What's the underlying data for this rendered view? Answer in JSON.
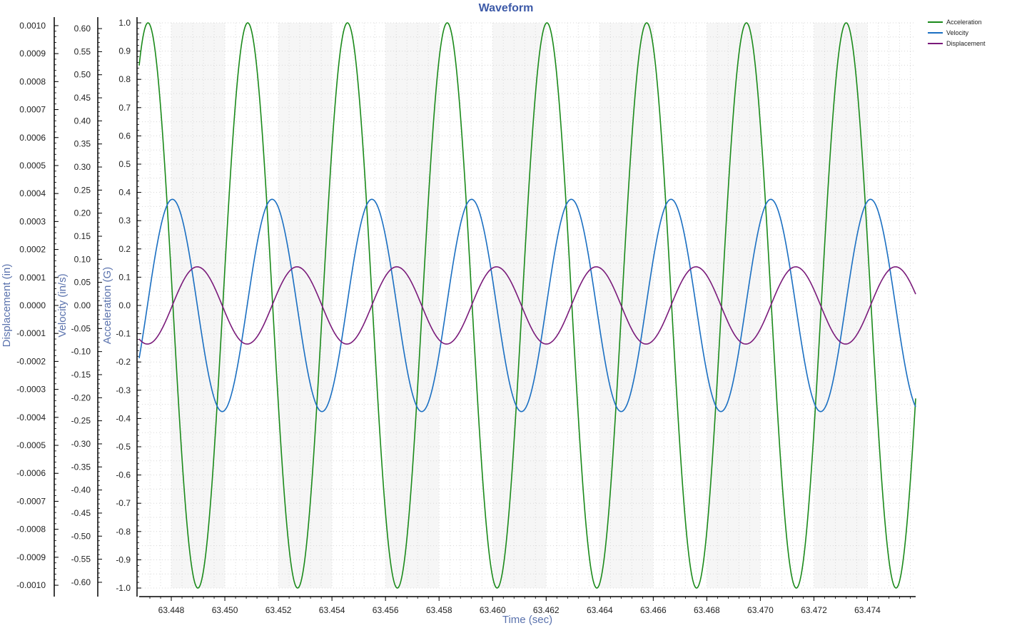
{
  "chart_data": {
    "type": "line",
    "title": "Waveform",
    "xlabel": "Time (sec)",
    "x_range": [
      63.4468,
      63.4758
    ],
    "x_ticks": [
      "63.448",
      "63.450",
      "63.452",
      "63.454",
      "63.456",
      "63.458",
      "63.460",
      "63.462",
      "63.464",
      "63.466",
      "63.468",
      "63.470",
      "63.472",
      "63.474"
    ],
    "y_axes": [
      {
        "key": "acceleration",
        "label": "Acceleration (G)",
        "range": [
          -1.0,
          1.0
        ],
        "ticks": [
          "1.0",
          "0.9",
          "0.8",
          "0.7",
          "0.6",
          "0.5",
          "0.4",
          "0.3",
          "0.2",
          "0.1",
          "0.0",
          "-0.1",
          "-0.2",
          "-0.3",
          "-0.4",
          "-0.5",
          "-0.6",
          "-0.7",
          "-0.8",
          "-0.9",
          "-1.0"
        ]
      },
      {
        "key": "velocity",
        "label": "Velocity (in/s)",
        "range": [
          -0.6125,
          0.6125
        ],
        "ticks": [
          "0.60",
          "0.55",
          "0.50",
          "0.45",
          "0.40",
          "0.35",
          "0.30",
          "0.25",
          "0.20",
          "0.15",
          "0.10",
          "0.05",
          "0.00",
          "-0.05",
          "-0.10",
          "-0.15",
          "-0.20",
          "-0.25",
          "-0.30",
          "-0.35",
          "-0.40",
          "-0.45",
          "-0.50",
          "-0.55",
          "-0.60"
        ]
      },
      {
        "key": "displacement",
        "label": "Displacement (in)",
        "range": [
          -0.00101,
          0.00101
        ],
        "ticks": [
          "0.0010",
          "0.0009",
          "0.0008",
          "0.0007",
          "0.0006",
          "0.0005",
          "0.0004",
          "0.0003",
          "0.0002",
          "0.0001",
          "0.0000",
          "-0.0001",
          "-0.0002",
          "-0.0003",
          "-0.0004",
          "-0.0005",
          "-0.0006",
          "-0.0007",
          "-0.0008",
          "-0.0009",
          "-0.0010"
        ]
      }
    ],
    "series": [
      {
        "name": "Acceleration",
        "axis": "acceleration",
        "color": "#1a8a1a",
        "period": 0.003725,
        "amplitude": 1.0,
        "first_peak_x": 63.44713,
        "phase_note": "cosine peaks"
      },
      {
        "name": "Velocity",
        "axis": "velocity",
        "color": "#1a6fc2",
        "period": 0.003725,
        "amplitude": 0.23,
        "first_peak_x": 63.44804,
        "offset_y": 0.0
      },
      {
        "name": "Displacement",
        "axis": "displacement",
        "color": "#7a1a7a",
        "period": 0.003725,
        "amplitude": 0.000138,
        "first_peak_x": 63.44897
      }
    ],
    "grid": true,
    "legend_position": "top-right"
  }
}
